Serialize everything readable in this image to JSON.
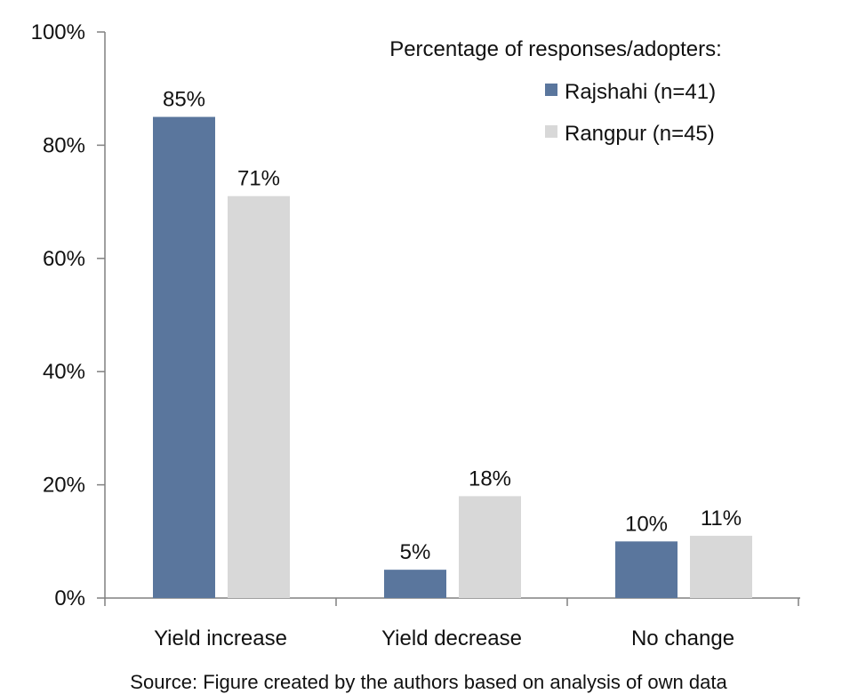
{
  "chart_data": {
    "type": "bar",
    "categories": [
      "Yield increase",
      "Yield decrease",
      "No change"
    ],
    "series": [
      {
        "name": "Rajshahi (n=41)",
        "values": [
          85,
          5,
          10
        ],
        "labels": [
          "85%",
          "5%",
          "10%"
        ],
        "color": "#5a769d"
      },
      {
        "name": "Rangpur (n=45)",
        "values": [
          71,
          18,
          11
        ],
        "labels": [
          "71%",
          "18%",
          "11%"
        ],
        "color": "#d8d8d8"
      }
    ],
    "ylim": [
      0,
      100
    ],
    "yticks": [
      0,
      20,
      40,
      60,
      80,
      100
    ],
    "ytick_labels": [
      "0%",
      "20%",
      "40%",
      "60%",
      "80%",
      "100%"
    ],
    "legend_title": "Percentage of responses/adopters:",
    "legend_position": "top-right",
    "grid": false
  },
  "caption": "Source: Figure created by the authors based on analysis of own data"
}
